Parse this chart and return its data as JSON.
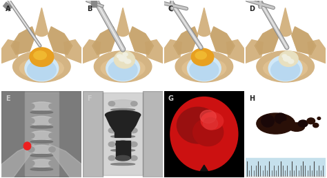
{
  "fig_width": 4.74,
  "fig_height": 2.58,
  "dpi": 100,
  "background_color": "#ffffff",
  "labels": [
    "A",
    "B",
    "C",
    "D",
    "E",
    "F",
    "G",
    "H"
  ],
  "label_color": "#222222",
  "label_fontsize": 7,
  "panel_border_color": "#aaaaaa",
  "spine_tan": "#d4b483",
  "spine_dark": "#b89050",
  "disc_yellow": "#e8a020",
  "disc_white": "#e8e0c0",
  "fluid_blue": "#b8d8f0",
  "fluid_blue2": "#d0e8f8",
  "xray_bg": "#909090",
  "xray_mid": "#b0b0b0",
  "xray_light": "#cccccc",
  "xray_dark": "#606060",
  "retractor_black": "#222222",
  "retractor_stem": "#444444",
  "endoscope_bg": "#000000",
  "endo_red1": "#cc1111",
  "endo_red2": "#991010",
  "endo_red3": "#dd2222",
  "endo_bright": "#ee4444",
  "specimen_bg": "#82b8c8",
  "specimen_dark": "#2a1008",
  "red_dot": "#ee2020",
  "instrument_silver": "#c8c8c8",
  "instrument_dark": "#888888",
  "instrument_light": "#e8e8e8"
}
